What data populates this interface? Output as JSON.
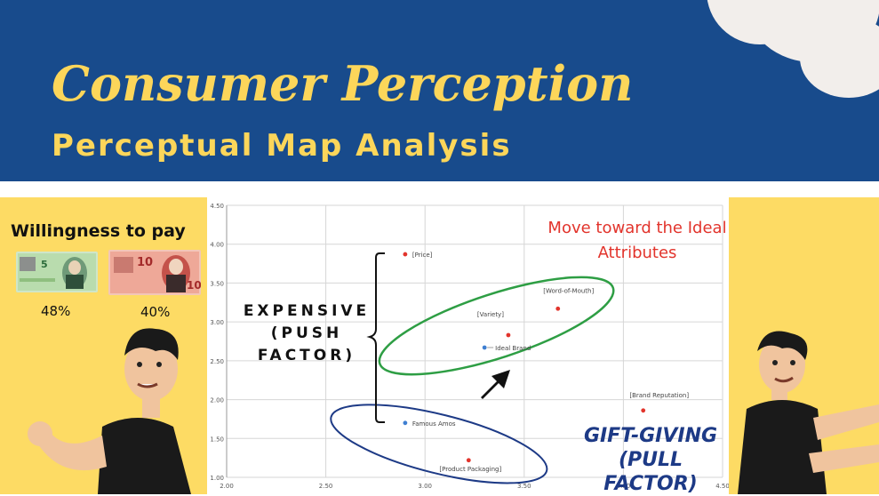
{
  "header": {
    "title": "Consumer Perception",
    "subtitle": "Perceptual Map Analysis"
  },
  "willingness": {
    "heading": "Willingness to pay",
    "notes": [
      {
        "label": "5 dollar note",
        "percent": "48%"
      },
      {
        "label": "10 dollar note",
        "percent": "40%"
      }
    ]
  },
  "annotations": {
    "expensive": "EXPENSIVE (PUSH FACTOR)",
    "move": "Move toward the Ideal Attributes",
    "gift": "GIFT-GIVING (PULL FACTOR)"
  },
  "colors": {
    "header_bg": "#184b8c",
    "title_text": "#fcd65a",
    "side_panel": "#fddb64",
    "attribute_point": "#e2342c",
    "brand_point": "#3f7fd1",
    "ideal_ellipse": "#2e9e44",
    "famous_ellipse": "#1d3a86"
  },
  "chart_data": {
    "type": "scatter",
    "xlim": [
      2.0,
      4.5
    ],
    "ylim": [
      1.0,
      4.5
    ],
    "x_ticks": [
      "2.00",
      "2.50",
      "3.00",
      "3.50",
      "4.00",
      "4.50"
    ],
    "y_ticks": [
      "1.00",
      "1.50",
      "2.00",
      "2.50",
      "3.00",
      "3.50",
      "4.00",
      "4.50"
    ],
    "grid": true,
    "points": [
      {
        "label": "[Price]",
        "x": 2.9,
        "y": 3.87,
        "kind": "attribute"
      },
      {
        "label": "[Word-of-Mouth]",
        "x": 3.67,
        "y": 3.17,
        "kind": "attribute"
      },
      {
        "label": "[Variety]",
        "x": 3.42,
        "y": 2.83,
        "kind": "attribute"
      },
      {
        "label": "Ideal Brand",
        "x": 3.3,
        "y": 2.67,
        "kind": "brand"
      },
      {
        "label": "[Brand Reputation]",
        "x": 4.1,
        "y": 1.86,
        "kind": "attribute"
      },
      {
        "label": "Famous Amos",
        "x": 2.9,
        "y": 1.7,
        "kind": "brand"
      },
      {
        "label": "[Product Packaging]",
        "x": 3.22,
        "y": 1.22,
        "kind": "attribute"
      }
    ]
  }
}
